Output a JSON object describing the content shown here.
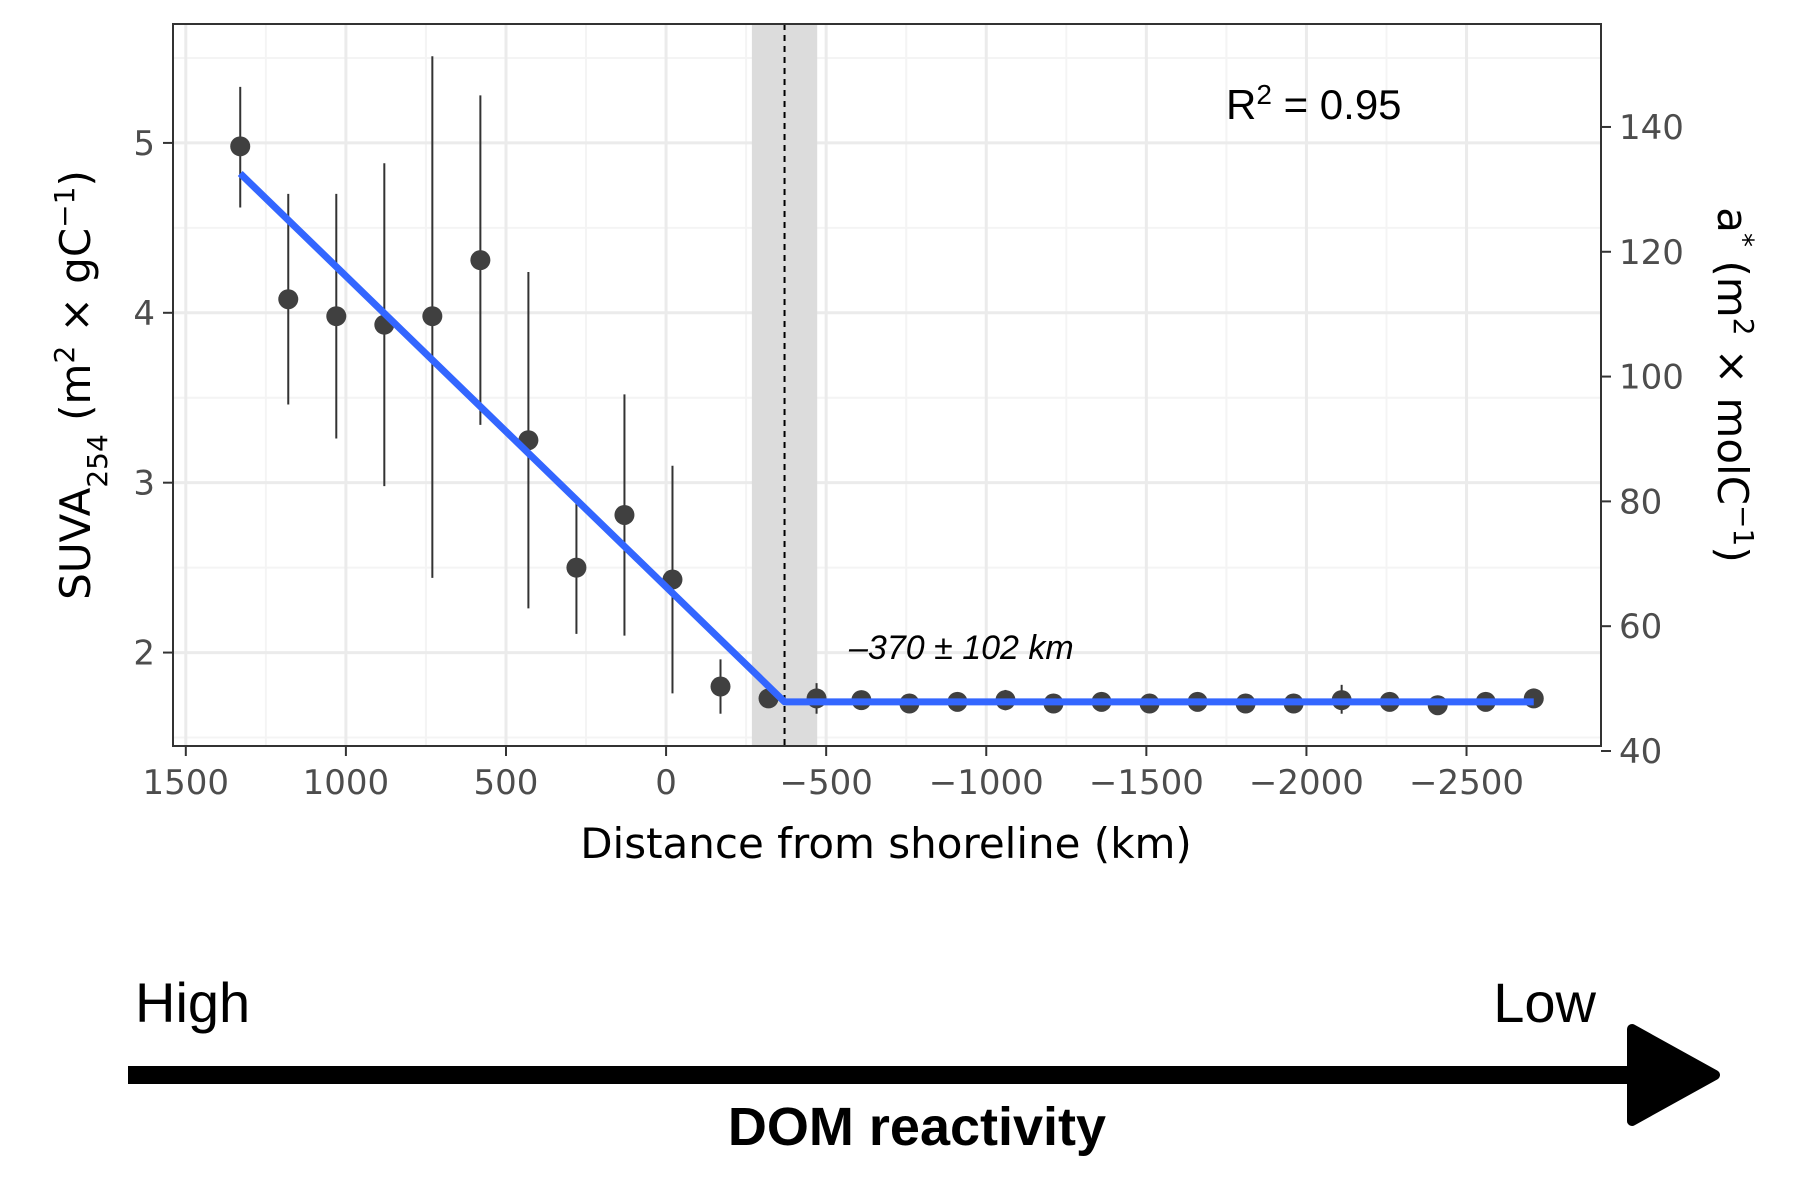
{
  "chart_data": {
    "type": "scatter",
    "xlabel": "Distance from shoreline (km)",
    "ylabel": {
      "main": "SUVA",
      "sub": "254",
      "unit_pre": " (m",
      "sup1": "2",
      "mid": " × gC",
      "sup2": "−1",
      "unit_post": ")"
    },
    "y2label": {
      "main": "a",
      "sup0": "*",
      "unit_pre": " (m",
      "sup1": "2",
      "mid": " × molC",
      "sup2": "−1",
      "unit_post": ")"
    },
    "x_reversed": true,
    "xlim": [
      1540,
      -2920
    ],
    "ylim": [
      1.45,
      5.7
    ],
    "y2lim": [
      40.8,
      156.5
    ],
    "grid": true,
    "x_ticks": [
      {
        "v": 1500,
        "label": "1500"
      },
      {
        "v": 1000,
        "label": "1000"
      },
      {
        "v": 500,
        "label": "500"
      },
      {
        "v": 0,
        "label": "0"
      },
      {
        "v": -500,
        "label": "−500"
      },
      {
        "v": -1000,
        "label": "−1000"
      },
      {
        "v": -1500,
        "label": "−1500"
      },
      {
        "v": -2000,
        "label": "−2000"
      },
      {
        "v": -2500,
        "label": "−2500"
      }
    ],
    "y_ticks": [
      {
        "v": 2,
        "label": "2"
      },
      {
        "v": 3,
        "label": "3"
      },
      {
        "v": 4,
        "label": "4"
      },
      {
        "v": 5,
        "label": "5"
      }
    ],
    "y2_ticks": [
      {
        "v": 40,
        "label": "40"
      },
      {
        "v": 60,
        "label": "60"
      },
      {
        "v": 80,
        "label": "80"
      },
      {
        "v": 100,
        "label": "100"
      },
      {
        "v": 120,
        "label": "120"
      },
      {
        "v": 140,
        "label": "140"
      }
    ],
    "points": [
      {
        "x": 1330,
        "y": 4.98,
        "lo": 4.62,
        "hi": 5.33
      },
      {
        "x": 1180,
        "y": 4.08,
        "lo": 3.46,
        "hi": 4.7
      },
      {
        "x": 1030,
        "y": 3.98,
        "lo": 3.26,
        "hi": 4.7
      },
      {
        "x": 880,
        "y": 3.93,
        "lo": 2.98,
        "hi": 4.88
      },
      {
        "x": 730,
        "y": 3.98,
        "lo": 2.44,
        "hi": 5.51
      },
      {
        "x": 580,
        "y": 4.31,
        "lo": 3.34,
        "hi": 5.28
      },
      {
        "x": 430,
        "y": 3.25,
        "lo": 2.26,
        "hi": 4.24
      },
      {
        "x": 280,
        "y": 2.5,
        "lo": 2.11,
        "hi": 2.89
      },
      {
        "x": 130,
        "y": 2.81,
        "lo": 2.1,
        "hi": 3.52
      },
      {
        "x": -20,
        "y": 2.43,
        "lo": 1.76,
        "hi": 3.1
      },
      {
        "x": -170,
        "y": 1.8,
        "lo": 1.64,
        "hi": 1.96
      },
      {
        "x": -320,
        "y": 1.73,
        "lo": 1.7,
        "hi": 1.76
      },
      {
        "x": -470,
        "y": 1.73,
        "lo": 1.64,
        "hi": 1.82
      },
      {
        "x": -610,
        "y": 1.72,
        "lo": 1.68,
        "hi": 1.76
      },
      {
        "x": -760,
        "y": 1.7,
        "lo": 1.66,
        "hi": 1.74
      },
      {
        "x": -910,
        "y": 1.71,
        "lo": 1.66,
        "hi": 1.76
      },
      {
        "x": -1060,
        "y": 1.72,
        "lo": 1.66,
        "hi": 1.78
      },
      {
        "x": -1210,
        "y": 1.7,
        "lo": 1.66,
        "hi": 1.74
      },
      {
        "x": -1360,
        "y": 1.71,
        "lo": 1.67,
        "hi": 1.75
      },
      {
        "x": -1510,
        "y": 1.7,
        "lo": 1.66,
        "hi": 1.74
      },
      {
        "x": -1660,
        "y": 1.71,
        "lo": 1.67,
        "hi": 1.75
      },
      {
        "x": -1810,
        "y": 1.7,
        "lo": 1.66,
        "hi": 1.74
      },
      {
        "x": -1960,
        "y": 1.7,
        "lo": 1.66,
        "hi": 1.74
      },
      {
        "x": -2110,
        "y": 1.72,
        "lo": 1.64,
        "hi": 1.81
      },
      {
        "x": -2260,
        "y": 1.71,
        "lo": 1.67,
        "hi": 1.75
      },
      {
        "x": -2410,
        "y": 1.69,
        "lo": 1.65,
        "hi": 1.73
      },
      {
        "x": -2560,
        "y": 1.71,
        "lo": 1.67,
        "hi": 1.75
      },
      {
        "x": -2710,
        "y": 1.73,
        "lo": 1.69,
        "hi": 1.77
      }
    ],
    "fit_line": [
      {
        "x": 1330,
        "y": 4.82
      },
      {
        "x": -370,
        "y": 1.71
      },
      {
        "x": -2710,
        "y": 1.71
      }
    ],
    "breakpoint": {
      "x": -370,
      "ci_lo": -268,
      "ci_hi": -472
    },
    "breakpoint_label": "–370 ± 102 km",
    "r2_label": {
      "main": "R",
      "sup": "2",
      "rest": " = 0.95"
    },
    "colors": {
      "fit": "#3366ff",
      "points": "#404040",
      "band": "#dcdcdc",
      "grid_major": "#ebebeb",
      "grid_minor": "#f4f4f4"
    }
  },
  "reactivity": {
    "high_label": "High",
    "low_label": "Low",
    "title": "DOM reactivity"
  }
}
